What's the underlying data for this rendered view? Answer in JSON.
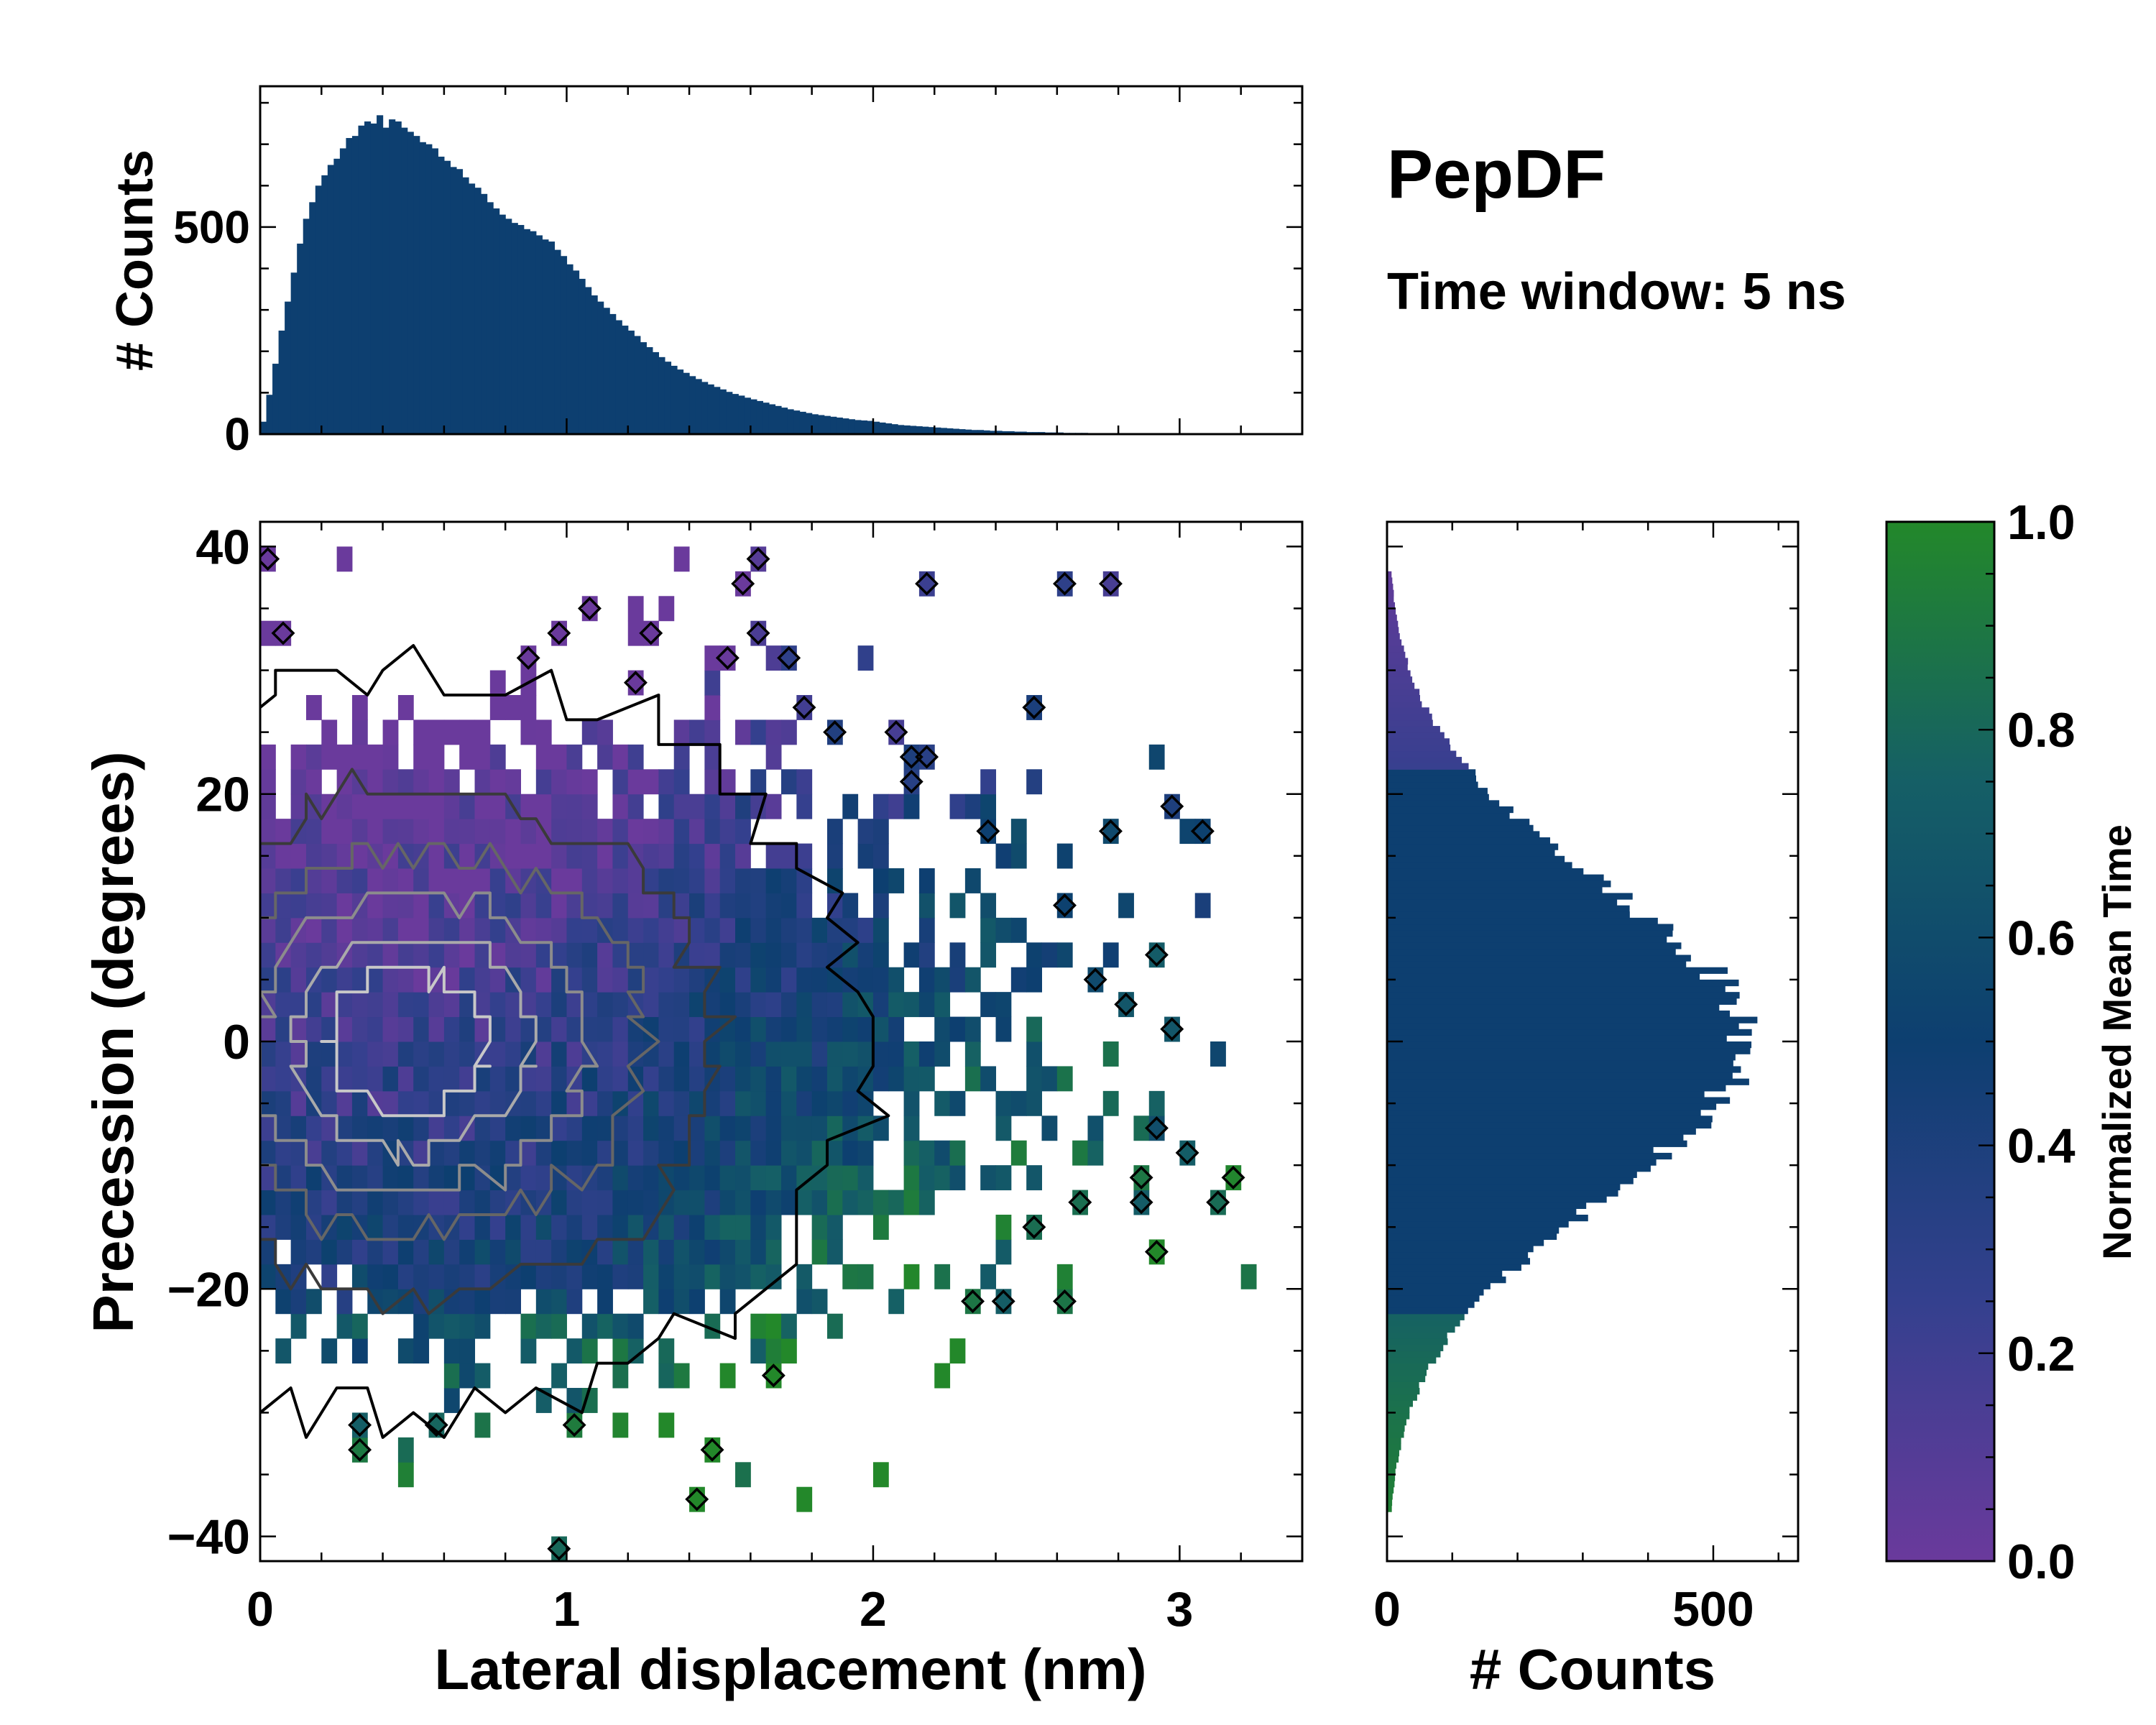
{
  "figure": {
    "title": "PepDF",
    "subtitle": "Time window: 5 ns"
  },
  "chart_data": [
    {
      "id": "top-histogram",
      "type": "bar",
      "title": "",
      "xlabel": "",
      "ylabel": "# Counts",
      "xlim": [
        0,
        3.4
      ],
      "ylim": [
        0,
        840
      ],
      "yticks": [
        0,
        500
      ],
      "ytick_labels": [
        "0",
        "500"
      ],
      "color": "#0d3f70",
      "bin_width": 0.02,
      "x_bin_starts": [
        0.0,
        0.02,
        0.04,
        0.06,
        0.08,
        0.1,
        0.12,
        0.14,
        0.16,
        0.18,
        0.2,
        0.22,
        0.24,
        0.26,
        0.28,
        0.3,
        0.32,
        0.34,
        0.36,
        0.38,
        0.4,
        0.42,
        0.44,
        0.46,
        0.48,
        0.5,
        0.52,
        0.54,
        0.56,
        0.58,
        0.6,
        0.62,
        0.64,
        0.66,
        0.68,
        0.7,
        0.72,
        0.74,
        0.76,
        0.78,
        0.8,
        0.82,
        0.84,
        0.86,
        0.88,
        0.9,
        0.92,
        0.94,
        0.96,
        0.98,
        1.0,
        1.02,
        1.04,
        1.06,
        1.08,
        1.1,
        1.12,
        1.14,
        1.16,
        1.18,
        1.2,
        1.22,
        1.24,
        1.26,
        1.28,
        1.3,
        1.32,
        1.34,
        1.36,
        1.38,
        1.4,
        1.42,
        1.44,
        1.46,
        1.48,
        1.5,
        1.52,
        1.54,
        1.56,
        1.58,
        1.6,
        1.62,
        1.64,
        1.66,
        1.68,
        1.7,
        1.72,
        1.74,
        1.76,
        1.78,
        1.8,
        1.82,
        1.84,
        1.86,
        1.88,
        1.9,
        1.92,
        1.94,
        1.96,
        1.98,
        2.0,
        2.02,
        2.04,
        2.06,
        2.08,
        2.1,
        2.12,
        2.14,
        2.16,
        2.18,
        2.2,
        2.22,
        2.24,
        2.26,
        2.28,
        2.3,
        2.32,
        2.34,
        2.36,
        2.38,
        2.4,
        2.42,
        2.44,
        2.46,
        2.48,
        2.5,
        2.52,
        2.54,
        2.56,
        2.58,
        2.6,
        2.62,
        2.64,
        2.66,
        2.68,
        2.7,
        2.72,
        2.74,
        2.76,
        2.78,
        2.8,
        2.82,
        2.84,
        2.86,
        2.88,
        2.9,
        2.92,
        2.94,
        2.96,
        2.98
      ],
      "values": [
        30,
        95,
        170,
        250,
        320,
        390,
        460,
        520,
        560,
        600,
        625,
        650,
        665,
        690,
        715,
        720,
        745,
        755,
        750,
        770,
        740,
        760,
        755,
        740,
        730,
        720,
        705,
        700,
        690,
        670,
        660,
        645,
        640,
        620,
        605,
        595,
        580,
        560,
        545,
        530,
        520,
        510,
        505,
        495,
        490,
        480,
        470,
        465,
        445,
        430,
        410,
        395,
        375,
        355,
        335,
        320,
        305,
        290,
        275,
        262,
        250,
        237,
        222,
        210,
        198,
        186,
        175,
        165,
        156,
        148,
        140,
        133,
        126,
        120,
        114,
        108,
        102,
        97,
        93,
        88,
        84,
        80,
        76,
        72,
        68,
        64,
        60,
        57,
        54,
        51,
        48,
        46,
        44,
        42,
        40,
        38,
        36,
        34,
        33,
        32,
        30,
        28,
        26,
        24,
        22,
        21,
        20,
        19,
        18,
        17,
        16,
        15,
        14,
        13,
        12,
        11,
        10,
        10,
        9,
        8,
        8,
        7,
        7,
        6,
        6,
        5,
        5,
        5,
        4,
        4,
        4,
        3,
        3,
        3,
        3,
        2,
        2,
        2,
        2,
        2,
        2,
        1,
        1,
        1,
        1,
        1,
        1,
        0,
        0,
        0
      ]
    },
    {
      "id": "main-heatmap",
      "type": "heatmap",
      "title": "",
      "xlabel": "Lateral displacement (nm)",
      "ylabel": "Precession (degrees)",
      "xlim": [
        0,
        3.4
      ],
      "ylim": [
        -42,
        42
      ],
      "xticks": [
        0,
        1,
        2,
        3
      ],
      "xtick_labels": [
        "0",
        "1",
        "2",
        "3"
      ],
      "yticks": [
        -40,
        -20,
        0,
        20,
        40
      ],
      "ytick_labels": [
        "−40",
        "−20",
        "0",
        "20",
        "40"
      ],
      "bin_size": [
        0.05,
        2.0
      ],
      "density_center": [
        0.6,
        0
      ],
      "density_spread": [
        0.55,
        13
      ],
      "colormap": [
        "#6a3a9c",
        "#34408e",
        "#0d3f70",
        "#155f66",
        "#23882a"
      ],
      "contour_colors": [
        "#000000",
        "#3a3a3a",
        "#666666",
        "#8c8c8c",
        "#aaaaaa",
        "#c8c8c8"
      ],
      "contour_levels": [
        0.05,
        0.25,
        0.45,
        0.62,
        0.78,
        0.9
      ]
    },
    {
      "id": "right-histogram",
      "type": "bar",
      "orientation": "horizontal",
      "title": "",
      "xlabel": "# Counts",
      "ylabel": "",
      "ylim": [
        -42,
        42
      ],
      "xlim": [
        0,
        630
      ],
      "xticks": [
        0,
        500
      ],
      "xtick_labels": [
        "0",
        "500"
      ],
      "color": "#0d3f70",
      "bin_width": 0.5,
      "center": 0,
      "sigma": 12.8,
      "peak": 545
    },
    {
      "id": "colorbar",
      "type": "colorbar",
      "label": "Normalized Mean Time",
      "range": [
        0.0,
        1.0
      ],
      "ticks": [
        0.0,
        0.2,
        0.4,
        0.6,
        0.8,
        1.0
      ],
      "tick_labels": [
        "0.0",
        "0.2",
        "0.4",
        "0.6",
        "0.8",
        "1.0"
      ],
      "colormap": [
        "#6a3a9c",
        "#34408e",
        "#0d3f70",
        "#155f66",
        "#23882a"
      ]
    }
  ]
}
